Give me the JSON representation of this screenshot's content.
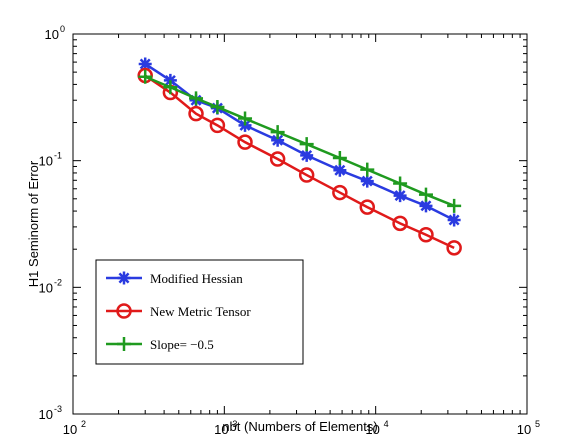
{
  "chart_data": {
    "type": "line",
    "xscale": "log",
    "yscale": "log",
    "xlim": [
      100,
      100000
    ],
    "ylim": [
      0.001,
      1
    ],
    "xlabel": "nbt (Numbers of Elements)",
    "ylabel": "H1 Seminorm of Error",
    "xticks": [
      {
        "base": "10",
        "exp": "2",
        "value": 100
      },
      {
        "base": "10",
        "exp": "3",
        "value": 1000
      },
      {
        "base": "10",
        "exp": "4",
        "value": 10000
      },
      {
        "base": "10",
        "exp": "5",
        "value": 100000
      }
    ],
    "yticks": [
      {
        "base": "10",
        "exp": "-3",
        "value": 0.001
      },
      {
        "base": "10",
        "exp": "-2",
        "value": 0.01
      },
      {
        "base": "10",
        "exp": "-1",
        "value": 0.1
      },
      {
        "base": "10",
        "exp": "0",
        "value": 1
      }
    ],
    "legend_position": "bottom-left",
    "grid": false,
    "series": [
      {
        "name": "Modified Hessian",
        "color": "#2a3be0",
        "marker": "asterisk",
        "x": [
          300,
          440,
          650,
          900,
          1370,
          2250,
          3500,
          5800,
          8800,
          14500,
          21500,
          33000
        ],
        "y": [
          0.58,
          0.43,
          0.3,
          0.26,
          0.19,
          0.145,
          0.11,
          0.084,
          0.069,
          0.053,
          0.044,
          0.034
        ]
      },
      {
        "name": "New Metric Tensor",
        "color": "#e01a1a",
        "marker": "circle",
        "x": [
          300,
          440,
          650,
          900,
          1370,
          2250,
          3500,
          5800,
          8800,
          14500,
          21500,
          33000
        ],
        "y": [
          0.47,
          0.345,
          0.235,
          0.19,
          0.14,
          0.103,
          0.077,
          0.056,
          0.043,
          0.032,
          0.026,
          0.0205
        ]
      },
      {
        "name": "Slope= −0.5",
        "color": "#1f9a1f",
        "marker": "plus",
        "x": [
          300,
          440,
          650,
          900,
          1370,
          2250,
          3500,
          5800,
          8800,
          14500,
          21500,
          33000
        ],
        "y": [
          0.46,
          0.38,
          0.31,
          0.265,
          0.215,
          0.168,
          0.135,
          0.105,
          0.085,
          0.066,
          0.054,
          0.044
        ]
      }
    ]
  }
}
